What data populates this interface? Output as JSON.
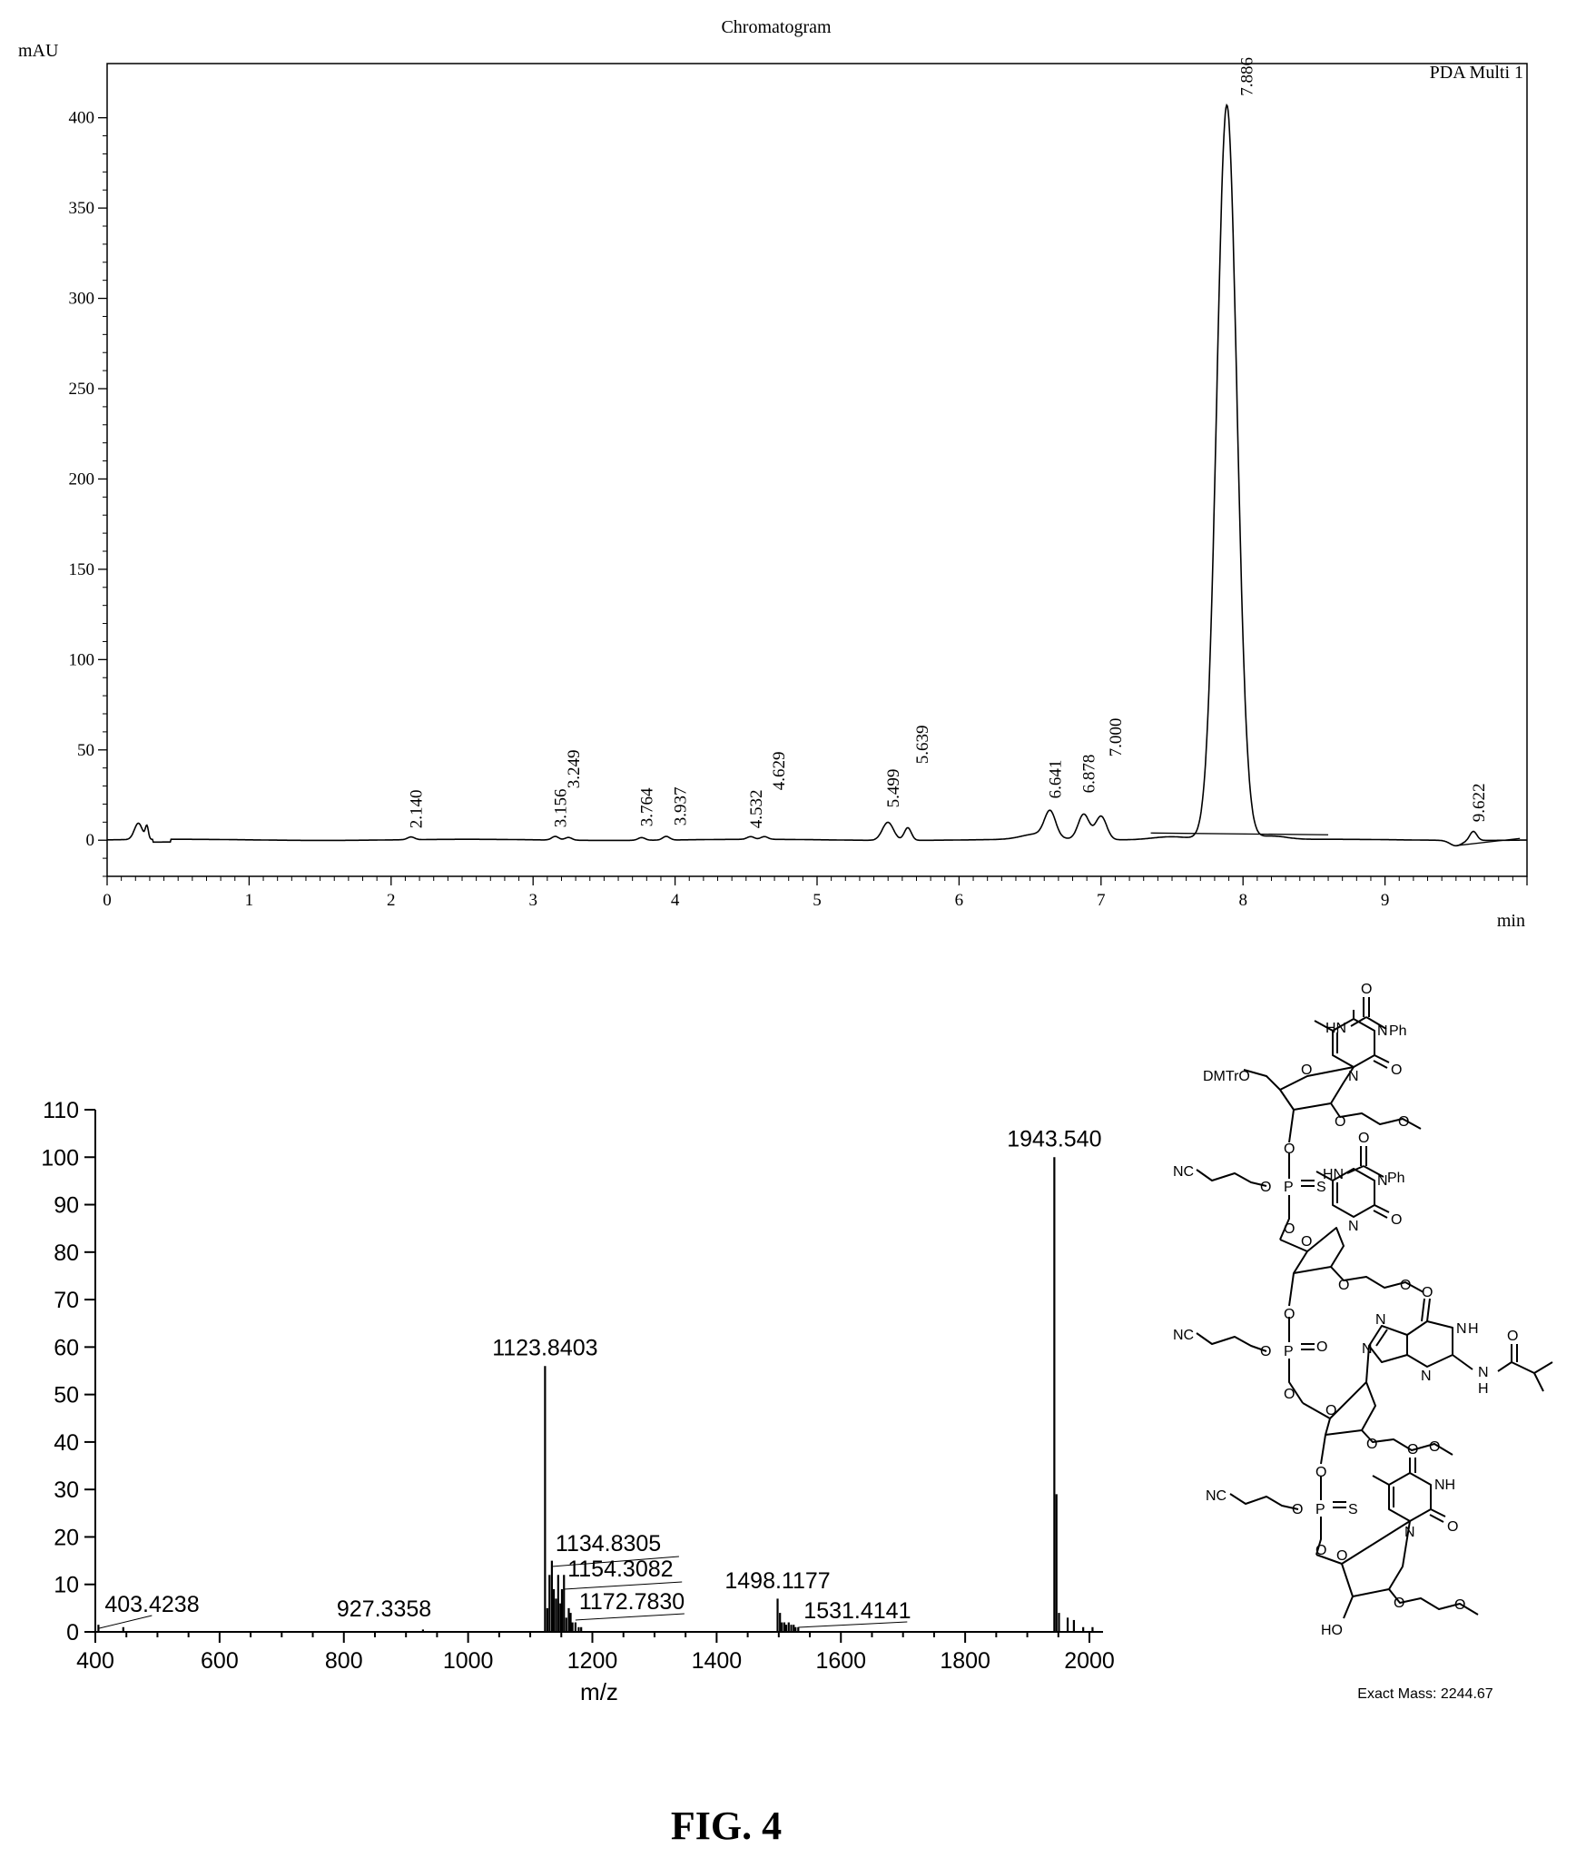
{
  "figure_label": "FIG. 4",
  "colors": {
    "ink": "#000000",
    "background": "#ffffff"
  },
  "chart_data": [
    {
      "type": "line",
      "title": "Chromatogram",
      "ylabel": "mAU",
      "xlabel": "min",
      "legend": "PDA Multi 1",
      "legend_position": "top-right",
      "xlim": [
        0,
        10
      ],
      "ylim": [
        -20,
        430
      ],
      "xticks": [
        0,
        1,
        2,
        3,
        4,
        5,
        6,
        7,
        8,
        9
      ],
      "xtick_labels": [
        "0",
        "1",
        "2",
        "3",
        "4",
        "5",
        "6",
        "7",
        "8",
        "9"
      ],
      "yticks": [
        0,
        50,
        100,
        150,
        200,
        250,
        300,
        350,
        400
      ],
      "ytick_labels": [
        "0",
        "50",
        "100",
        "150",
        "200",
        "250",
        "300",
        "350",
        "400"
      ],
      "grid": false,
      "peaks": [
        {
          "label": "2.140",
          "rt": 2.14,
          "height": 1.5
        },
        {
          "label": "3.156",
          "rt": 3.156,
          "height": 2
        },
        {
          "label": "3.249",
          "rt": 3.249,
          "height": 1.5
        },
        {
          "label": "3.764",
          "rt": 3.764,
          "height": 1.5
        },
        {
          "label": "3.937",
          "rt": 3.937,
          "height": 2
        },
        {
          "label": "4.532",
          "rt": 4.532,
          "height": 1.5
        },
        {
          "label": "4.629",
          "rt": 4.629,
          "height": 1.5
        },
        {
          "label": "5.499",
          "rt": 5.499,
          "height": 10
        },
        {
          "label": "5.639",
          "rt": 5.639,
          "height": 7
        },
        {
          "label": "6.641",
          "rt": 6.641,
          "height": 14
        },
        {
          "label": "6.878",
          "rt": 6.878,
          "height": 14
        },
        {
          "label": "7.000",
          "rt": 7.0,
          "height": 13
        },
        {
          "label": "7.886",
          "rt": 7.886,
          "height": 407
        },
        {
          "label": "9.622",
          "rt": 9.622,
          "height": 5
        }
      ]
    },
    {
      "type": "bar",
      "xlabel": "m/z",
      "ylabel": "",
      "xlim": [
        400,
        2020
      ],
      "ylim": [
        0,
        110
      ],
      "xticks": [
        400,
        600,
        800,
        1000,
        1200,
        1400,
        1600,
        1800,
        2000
      ],
      "xtick_labels": [
        "400",
        "600",
        "800",
        "1000",
        "1200",
        "1400",
        "1600",
        "1800",
        "2000"
      ],
      "yticks": [
        0,
        10,
        20,
        30,
        40,
        50,
        60,
        70,
        80,
        90,
        100,
        110
      ],
      "ytick_labels": [
        "0",
        "10",
        "20",
        "30",
        "40",
        "50",
        "60",
        "70",
        "80",
        "90",
        "100",
        "110"
      ],
      "grid": false,
      "peaks": [
        {
          "mz": 405,
          "intensity": 1.5
        },
        {
          "mz": 445,
          "intensity": 1
        },
        {
          "mz": 927.3358,
          "intensity": 0.5
        },
        {
          "mz": 1123.8403,
          "intensity": 56
        },
        {
          "mz": 1127.5,
          "intensity": 5
        },
        {
          "mz": 1131,
          "intensity": 12
        },
        {
          "mz": 1134.8305,
          "intensity": 15
        },
        {
          "mz": 1138,
          "intensity": 9
        },
        {
          "mz": 1141.5,
          "intensity": 7
        },
        {
          "mz": 1145,
          "intensity": 12
        },
        {
          "mz": 1148.5,
          "intensity": 6
        },
        {
          "mz": 1151,
          "intensity": 9
        },
        {
          "mz": 1154.3082,
          "intensity": 12
        },
        {
          "mz": 1158,
          "intensity": 3
        },
        {
          "mz": 1162,
          "intensity": 5
        },
        {
          "mz": 1165,
          "intensity": 4
        },
        {
          "mz": 1168,
          "intensity": 2
        },
        {
          "mz": 1172.783,
          "intensity": 2
        },
        {
          "mz": 1178,
          "intensity": 1
        },
        {
          "mz": 1182,
          "intensity": 1
        },
        {
          "mz": 1498.1177,
          "intensity": 7
        },
        {
          "mz": 1502,
          "intensity": 4
        },
        {
          "mz": 1505,
          "intensity": 2
        },
        {
          "mz": 1509,
          "intensity": 2
        },
        {
          "mz": 1512,
          "intensity": 1.5
        },
        {
          "mz": 1516,
          "intensity": 2
        },
        {
          "mz": 1520,
          "intensity": 1.5
        },
        {
          "mz": 1524,
          "intensity": 1.5
        },
        {
          "mz": 1527,
          "intensity": 1
        },
        {
          "mz": 1531.4141,
          "intensity": 1
        },
        {
          "mz": 1943.54,
          "intensity": 100
        },
        {
          "mz": 1947,
          "intensity": 29
        },
        {
          "mz": 1951,
          "intensity": 4
        },
        {
          "mz": 1965,
          "intensity": 3
        },
        {
          "mz": 1975,
          "intensity": 2.5
        },
        {
          "mz": 1990,
          "intensity": 1
        },
        {
          "mz": 2005,
          "intensity": 1
        }
      ],
      "peak_labels": [
        {
          "text": "403.4238",
          "mz": 403.4238,
          "intensity": 1.5
        },
        {
          "text": "927.3358",
          "mz": 927.3358,
          "intensity": 0.5
        },
        {
          "text": "1123.8403",
          "mz": 1123.8403,
          "intensity": 56
        },
        {
          "text": "1134.8305",
          "mz": 1134.8305,
          "intensity": 15
        },
        {
          "text": "1154.3082",
          "mz": 1154.3082,
          "intensity": 12
        },
        {
          "text": "1172.7830",
          "mz": 1172.783,
          "intensity": 2
        },
        {
          "text": "1498.1177",
          "mz": 1498.1177,
          "intensity": 7
        },
        {
          "text": "1531.4141",
          "mz": 1531.4141,
          "intensity": 1
        },
        {
          "text": "1943.540",
          "mz": 1943.54,
          "intensity": 100
        }
      ]
    }
  ],
  "structure": {
    "labels": {
      "dmtro": "DMTrO",
      "hn1": "HN",
      "ph1": "Ph",
      "o_c1": "O",
      "n1": "N",
      "o1": "O",
      "ring_o1": "O",
      "n1b": "N",
      "ome1": "O",
      "ome1b": "O",
      "nc1": "NC",
      "o_link1": "O",
      "p1": "P",
      "s1": "S",
      "o_link1b": "O",
      "o_3p1": "O",
      "hn2": "HN",
      "ph2": "Ph",
      "o_c2": "O",
      "n2": "N",
      "o2": "O",
      "ring_o2": "O",
      "n2b": "N",
      "ome2": "O",
      "ome2b": "O",
      "nc2": "NC",
      "o_link2": "O",
      "p2": "P",
      "o_p2": "O",
      "o_link2b": "O",
      "o_3p2": "O",
      "o_g": "O",
      "nh_g1": "N",
      "nh_g1h": "H",
      "n_g2": "N",
      "n_g3": "N",
      "n_g4": "N",
      "nh_g5": "N",
      "nh_g5h": "H",
      "o_ib": "O",
      "ring_o3": "O",
      "ome3": "O",
      "ome3b": "O",
      "nc3": "NC",
      "o_link3": "O",
      "p3": "P",
      "s3": "S",
      "o_link3b": "O",
      "o_3p3": "O",
      "o_t1": "O",
      "nh_t": "NH",
      "o_t2": "O",
      "n_t": "N",
      "ring_o4": "O",
      "ho": "HO",
      "ome4": "O",
      "ome4b": "O"
    },
    "exact_mass": "Exact Mass: 2244.67"
  }
}
